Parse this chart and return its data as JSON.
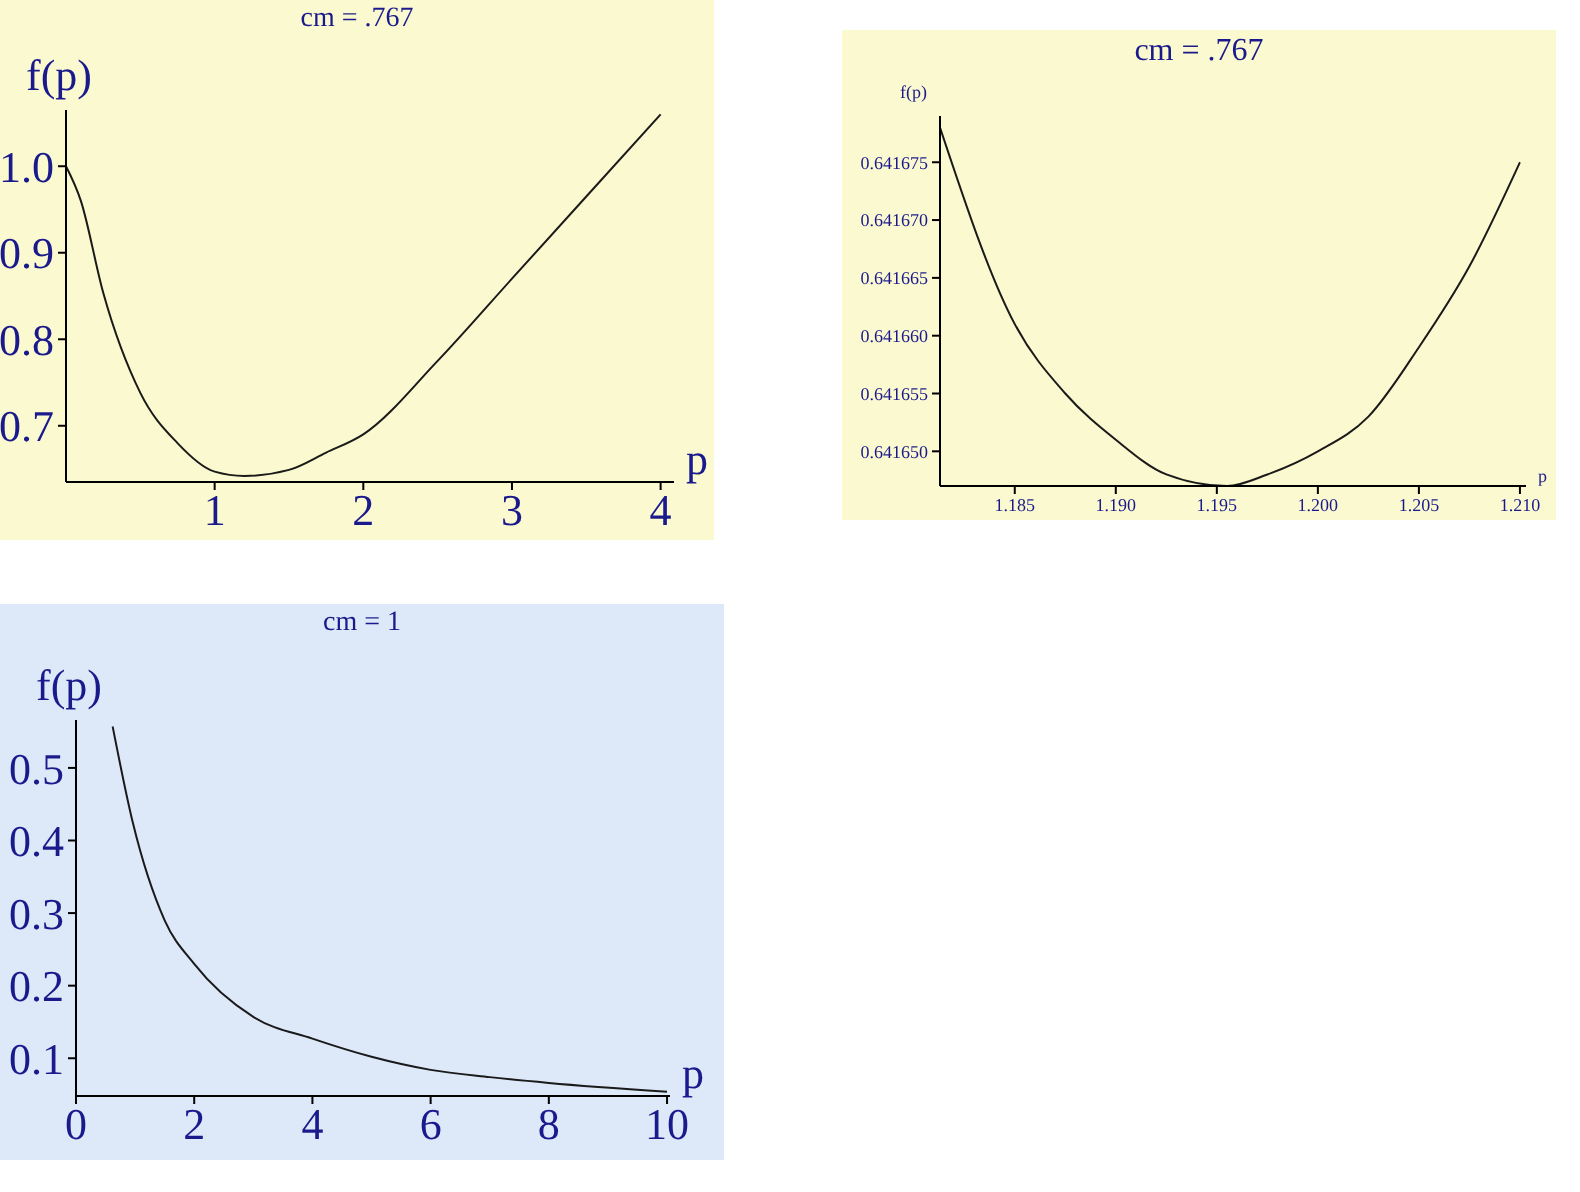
{
  "chart_data": [
    {
      "type": "line",
      "title": "cm = .767",
      "xlabel": "p",
      "ylabel": "f(p)",
      "x": [
        0,
        0.1,
        0.25,
        0.5,
        0.75,
        1,
        1.2,
        1.5,
        1.75,
        2,
        2.5,
        3,
        3.5,
        4
      ],
      "series": [
        {
          "color": "#1a1a1a",
          "values": [
            1.0,
            0.96,
            0.854,
            0.738,
            0.68,
            0.647,
            0.642,
            0.649,
            0.669,
            0.69,
            0.775,
            0.87,
            0.965,
            1.06
          ]
        }
      ],
      "xlim": [
        0,
        4.09
      ],
      "xticks": [
        1,
        2,
        3,
        4
      ],
      "ylim": [
        0.635,
        1.065
      ],
      "yticks": [
        0.7,
        0.8,
        0.9,
        {
          "value": 1,
          "label": "1.0"
        }
      ]
    },
    {
      "type": "line",
      "title": "cm = .767",
      "xlabel": "p",
      "ylabel": "f(p)",
      "x": [
        1.1813,
        1.185,
        1.1875,
        1.19,
        1.1925,
        1.1955,
        1.1975,
        1.2,
        1.2025,
        1.205,
        1.2075,
        1.21
      ],
      "series": [
        {
          "color": "#1a1a1a",
          "values": [
            0.641678,
            0.641661,
            0.641655,
            0.641651,
            0.641648,
            0.641647,
            0.641648,
            0.64165,
            0.641653,
            0.641659,
            0.641666,
            0.641675
          ]
        }
      ],
      "xlim": [
        1.1813,
        1.2103
      ],
      "xticks": [
        1.185,
        {
          "value": 1.19,
          "label": "1.190"
        },
        1.195,
        {
          "value": 1.2,
          "label": "1.200"
        },
        1.205,
        {
          "value": 1.21,
          "label": "1.210"
        }
      ],
      "ylim": [
        0.641647,
        0.641679
      ],
      "yticks": [
        {
          "value": 0.64165,
          "label": "0.641650"
        },
        0.641655,
        {
          "value": 0.64166,
          "label": "0.641660"
        },
        0.641665,
        {
          "value": 0.64167,
          "label": "0.641670"
        },
        0.641675
      ]
    },
    {
      "type": "line",
      "title": "cm = 1",
      "xlabel": "p",
      "ylabel": "f(p)",
      "x": [
        0.62,
        0.96,
        1.5,
        2,
        3,
        4,
        5,
        6,
        7,
        8,
        10
      ],
      "series": [
        {
          "color": "#1a1a1a",
          "values": [
            0.557,
            0.425,
            0.29,
            0.23,
            0.157,
            0.127,
            0.102,
            0.084,
            0.074,
            0.066,
            0.054
          ]
        }
      ],
      "xlim": [
        0,
        10.05
      ],
      "xticks": [
        0,
        2,
        4,
        6,
        8,
        10
      ],
      "ylim": [
        0.048,
        0.566
      ],
      "yticks": [
        0.1,
        0.2,
        0.3,
        0.4,
        0.5
      ]
    }
  ]
}
